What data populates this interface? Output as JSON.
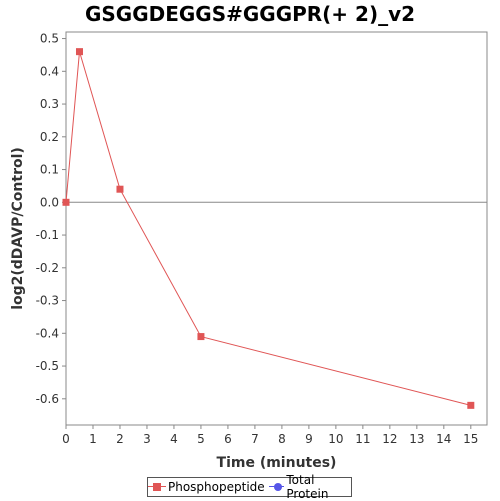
{
  "chart_data": {
    "type": "line",
    "title": "GSGGDEGGS#GGGPR(+ 2)_v2",
    "xlabel": "Time (minutes)",
    "ylabel": "log2(dDAVP/Control)",
    "xlim": [
      0,
      15.6
    ],
    "ylim": [
      -0.68,
      0.52
    ],
    "xticks": [
      "0",
      "1",
      "2",
      "3",
      "4",
      "5",
      "6",
      "7",
      "8",
      "9",
      "10",
      "11",
      "12",
      "13",
      "14",
      "15"
    ],
    "yticks": [
      "0.5",
      "0.4",
      "0.3",
      "0.2",
      "0.1",
      "0.0",
      "-0.1",
      "-0.2",
      "-0.3",
      "-0.4",
      "-0.5",
      "-0.6"
    ],
    "series": [
      {
        "name": "Phosphopeptide",
        "color": "#e05555",
        "marker": "square",
        "x": [
          0,
          0.5,
          2,
          5,
          15
        ],
        "y": [
          0.0,
          0.46,
          0.04,
          -0.41,
          -0.62
        ]
      },
      {
        "name": "Total Protein",
        "color": "#5555e8",
        "marker": "circle",
        "x": [],
        "y": []
      }
    ],
    "zero_line": true,
    "grid": false,
    "legend_position": "bottom"
  }
}
